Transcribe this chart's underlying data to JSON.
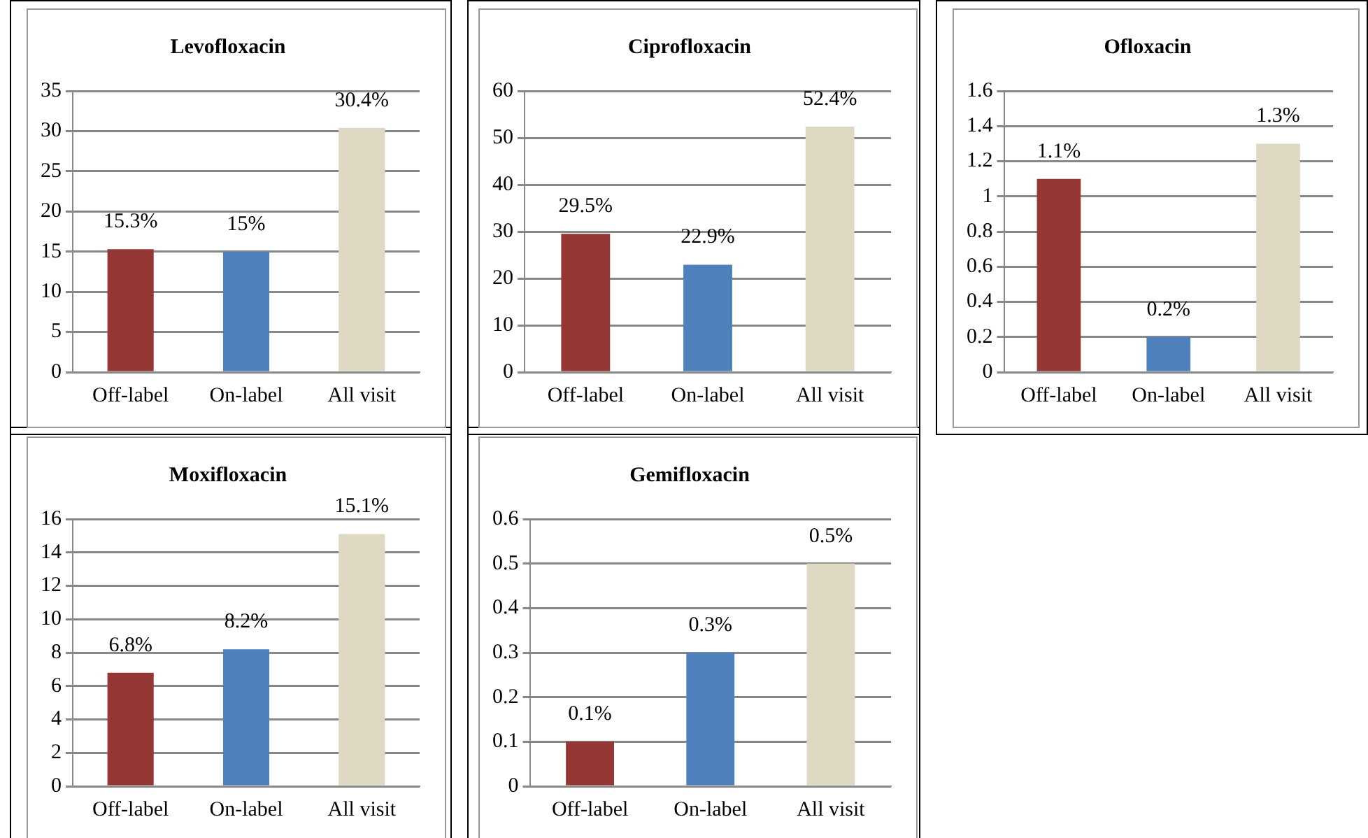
{
  "chart_data": [
    {
      "type": "bar",
      "title": "Levofloxacin",
      "categories": [
        "Off-label",
        "On-label",
        "All visit"
      ],
      "values": [
        15.3,
        15,
        30.4
      ],
      "colors": [
        "#953735",
        "#4f81bd",
        "#ddd9c3"
      ],
      "value_labels": [
        "15.3%",
        "15%",
        "30.4%"
      ],
      "ylim": [
        0,
        35
      ],
      "yticks": [
        0,
        5,
        10,
        15,
        20,
        25,
        30,
        35
      ],
      "grid": "y"
    },
    {
      "type": "bar",
      "title": "Ciprofloxacin",
      "categories": [
        "Off-label",
        "On-label",
        "All visit"
      ],
      "values": [
        29.5,
        22.9,
        52.4
      ],
      "colors": [
        "#953735",
        "#4f81bd",
        "#ddd9c3"
      ],
      "value_labels": [
        "29.5%",
        "22.9%",
        "52.4%"
      ],
      "ylim": [
        0,
        60
      ],
      "yticks": [
        0,
        10,
        20,
        30,
        40,
        50,
        60
      ],
      "grid": "y"
    },
    {
      "type": "bar",
      "title": "Ofloxacin",
      "categories": [
        "Off-label",
        "On-label",
        "All visit"
      ],
      "values": [
        1.1,
        0.2,
        1.3
      ],
      "colors": [
        "#953735",
        "#4f81bd",
        "#ddd9c3"
      ],
      "value_labels": [
        "1.1%",
        "0.2%",
        "1.3%"
      ],
      "ylim": [
        0,
        1.6
      ],
      "yticks": [
        0,
        0.2,
        0.4,
        0.6,
        0.8,
        1,
        1.2,
        1.4,
        1.6
      ],
      "grid": "y"
    },
    {
      "type": "bar",
      "title": "Moxifloxacin",
      "categories": [
        "Off-label",
        "On-label",
        "All visit"
      ],
      "values": [
        6.8,
        8.2,
        15.1
      ],
      "colors": [
        "#953735",
        "#4f81bd",
        "#ddd9c3"
      ],
      "value_labels": [
        "6.8%",
        "8.2%",
        "15.1%"
      ],
      "ylim": [
        0,
        16
      ],
      "yticks": [
        0,
        2,
        4,
        6,
        8,
        10,
        12,
        14,
        16
      ],
      "grid": "y"
    },
    {
      "type": "bar",
      "title": "Gemifloxacin",
      "categories": [
        "Off-label",
        "On-label",
        "All visit"
      ],
      "values": [
        0.1,
        0.3,
        0.5
      ],
      "colors": [
        "#953735",
        "#4f81bd",
        "#ddd9c3"
      ],
      "value_labels": [
        "0.1%",
        "0.3%",
        "0.5%"
      ],
      "ylim": [
        0,
        0.6
      ],
      "yticks": [
        0,
        0.1,
        0.2,
        0.3,
        0.4,
        0.5,
        0.6
      ],
      "grid": "y"
    }
  ]
}
